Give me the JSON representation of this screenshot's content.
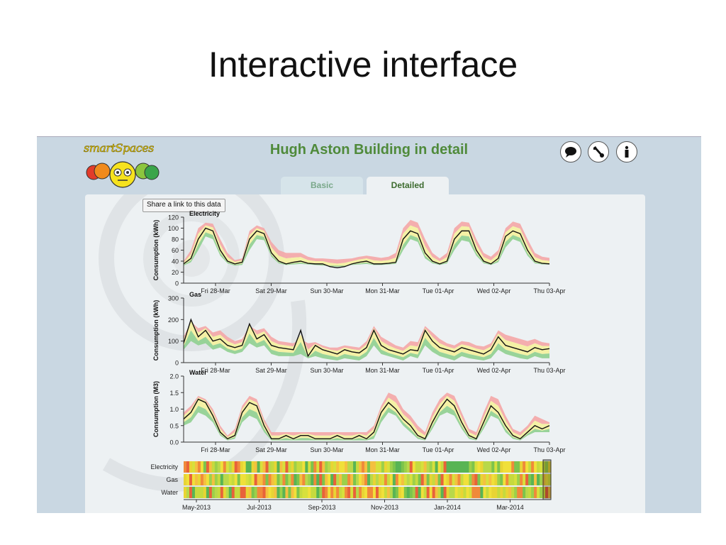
{
  "slide": {
    "title": "Interactive interface"
  },
  "app": {
    "logo_text": "smartSpaces",
    "title": "Hugh Aston Building in detail",
    "icons": [
      "comment-icon",
      "wrench-icon",
      "info-icon"
    ],
    "tabs": [
      {
        "label": "Basic",
        "active": false
      },
      {
        "label": "Detailed",
        "active": true
      }
    ],
    "share_label": "Share a link to this data",
    "colors": {
      "title": "#4f8a3a",
      "actual_line": "#111111",
      "upper_band": "#f4a6a6",
      "mid_band": "#f4f0a0",
      "lower_band": "#8fcf8f"
    }
  },
  "chart_data": [
    {
      "type": "area",
      "title": "Electricity",
      "ylabel": "Consumption (kWh)",
      "yticks": [
        "120",
        "100",
        "80",
        "60",
        "40",
        "20",
        "0"
      ],
      "ylim": [
        0,
        120
      ],
      "xticks": [
        "Fri 28-Mar",
        "Sat 29-Mar",
        "Sun 30-Mar",
        "Mon 31-Mar",
        "Tue 01-Apr",
        "Wed 02-Apr",
        "Thu 03-Apr"
      ],
      "series": [
        {
          "values": [
            35,
            45,
            80,
            100,
            95,
            60,
            40,
            35,
            38,
            80,
            95,
            90,
            55,
            40,
            35,
            38,
            40,
            36,
            35,
            35,
            30,
            28,
            30,
            35,
            38,
            40,
            35,
            35,
            36,
            38,
            80,
            95,
            90,
            55,
            40,
            35,
            40,
            80,
            95,
            95,
            60,
            40,
            35,
            45,
            85,
            95,
            90,
            60,
            40,
            36,
            35
          ]
        }
      ],
      "band_upper": [
        40,
        60,
        100,
        110,
        108,
        80,
        55,
        42,
        45,
        95,
        105,
        100,
        75,
        60,
        55,
        55,
        55,
        48,
        45,
        45,
        44,
        43,
        44,
        45,
        48,
        50,
        48,
        46,
        48,
        55,
        100,
        115,
        110,
        80,
        55,
        45,
        55,
        100,
        112,
        110,
        80,
        55,
        48,
        60,
        100,
        112,
        108,
        80,
        55,
        48,
        46
      ],
      "band_lower": [
        32,
        38,
        60,
        85,
        80,
        50,
        36,
        32,
        33,
        60,
        80,
        78,
        48,
        36,
        33,
        34,
        35,
        34,
        33,
        32,
        32,
        32,
        32,
        33,
        34,
        35,
        33,
        33,
        34,
        35,
        60,
        80,
        75,
        45,
        36,
        33,
        36,
        60,
        78,
        75,
        50,
        36,
        33,
        38,
        65,
        80,
        75,
        50,
        36,
        34,
        34
      ]
    },
    {
      "type": "area",
      "title": "Gas",
      "ylabel": "Consumption (kWh)",
      "yticks": [
        "300",
        "200",
        "100",
        "0"
      ],
      "ylim": [
        0,
        300
      ],
      "xticks": [
        "Fri 28-Mar",
        "Sat 29-Mar",
        "Sun 30-Mar",
        "Mon 31-Mar",
        "Tue 01-Apr",
        "Wed 02-Apr",
        "Thu 03-Apr"
      ],
      "series": [
        {
          "values": [
            90,
            200,
            120,
            150,
            100,
            110,
            80,
            70,
            80,
            180,
            110,
            130,
            80,
            70,
            65,
            60,
            150,
            30,
            80,
            60,
            50,
            40,
            60,
            50,
            45,
            70,
            150,
            80,
            60,
            50,
            40,
            60,
            55,
            150,
            100,
            70,
            60,
            50,
            70,
            60,
            50,
            40,
            60,
            120,
            80,
            70,
            60,
            50,
            70,
            60,
            65
          ]
        }
      ],
      "band_upper": [
        120,
        190,
        160,
        170,
        140,
        150,
        120,
        100,
        110,
        170,
        150,
        160,
        120,
        100,
        95,
        90,
        110,
        90,
        95,
        80,
        70,
        70,
        80,
        75,
        70,
        100,
        170,
        120,
        100,
        80,
        70,
        100,
        95,
        170,
        140,
        110,
        90,
        80,
        100,
        95,
        80,
        75,
        90,
        150,
        130,
        120,
        110,
        100,
        110,
        95,
        90
      ],
      "band_lower": [
        60,
        100,
        80,
        90,
        60,
        70,
        50,
        40,
        50,
        90,
        70,
        80,
        40,
        30,
        30,
        30,
        40,
        20,
        30,
        20,
        15,
        10,
        20,
        15,
        10,
        30,
        80,
        40,
        30,
        20,
        10,
        30,
        20,
        80,
        50,
        30,
        20,
        10,
        30,
        20,
        15,
        10,
        20,
        60,
        40,
        30,
        20,
        15,
        30,
        20,
        20
      ]
    },
    {
      "type": "area",
      "title": "Water",
      "ylabel": "Consumption (M3)",
      "yticks": [
        "2.0",
        "1.5",
        "1.0",
        "0.5",
        "0.0"
      ],
      "ylim": [
        0,
        2.0
      ],
      "xticks": [
        "Fri 28-Mar",
        "Sat 29-Mar",
        "Sun 30-Mar",
        "Mon 31-Mar",
        "Tue 01-Apr",
        "Wed 02-Apr",
        "Thu 03-Apr"
      ],
      "series": [
        {
          "values": [
            0.7,
            0.9,
            1.3,
            1.2,
            0.8,
            0.3,
            0.1,
            0.2,
            0.9,
            1.2,
            1.1,
            0.5,
            0.1,
            0.1,
            0.2,
            0.1,
            0.2,
            0.2,
            0.1,
            0.1,
            0.1,
            0.2,
            0.1,
            0.1,
            0.2,
            0.1,
            0.3,
            0.9,
            1.2,
            1.0,
            0.7,
            0.5,
            0.2,
            0.1,
            0.6,
            1.0,
            1.3,
            1.1,
            0.6,
            0.2,
            0.1,
            0.6,
            1.1,
            0.9,
            0.5,
            0.2,
            0.1,
            0.3,
            0.5,
            0.4,
            0.5
          ]
        }
      ],
      "band_upper": [
        0.9,
        1.1,
        1.4,
        1.3,
        1.0,
        0.5,
        0.2,
        0.4,
        1.1,
        1.4,
        1.3,
        0.7,
        0.3,
        0.3,
        0.3,
        0.3,
        0.3,
        0.3,
        0.3,
        0.3,
        0.3,
        0.3,
        0.3,
        0.3,
        0.3,
        0.3,
        0.5,
        1.1,
        1.5,
        1.4,
        1.0,
        0.8,
        0.5,
        0.3,
        0.9,
        1.3,
        1.5,
        1.4,
        0.9,
        0.4,
        0.3,
        0.9,
        1.4,
        1.3,
        0.8,
        0.4,
        0.3,
        0.5,
        0.8,
        0.7,
        0.6
      ],
      "band_lower": [
        0.5,
        0.6,
        0.9,
        0.8,
        0.6,
        0.2,
        0.05,
        0.1,
        0.6,
        0.8,
        0.7,
        0.3,
        0.05,
        0.05,
        0.05,
        0.05,
        0.05,
        0.05,
        0.05,
        0.05,
        0.05,
        0.05,
        0.05,
        0.05,
        0.05,
        0.05,
        0.1,
        0.6,
        0.9,
        0.8,
        0.5,
        0.3,
        0.1,
        0.05,
        0.4,
        0.8,
        0.9,
        0.8,
        0.4,
        0.1,
        0.05,
        0.4,
        0.8,
        0.7,
        0.3,
        0.1,
        0.05,
        0.2,
        0.3,
        0.3,
        0.3
      ]
    },
    {
      "type": "heatmap",
      "rows": [
        "Electricity",
        "Gas",
        "Water"
      ],
      "xticks": [
        "May-2013",
        "Jul-2013",
        "Sep-2013",
        "Nov-2013",
        "Jan-2014",
        "Mar-2014"
      ],
      "legend": "none"
    }
  ]
}
